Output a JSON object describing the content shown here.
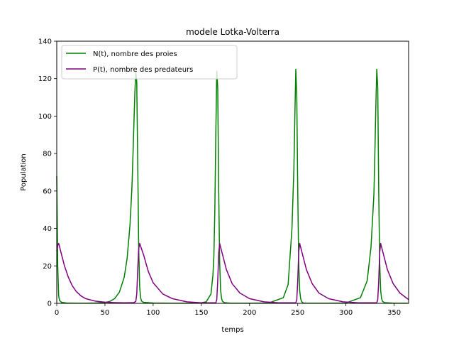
{
  "chart_data": {
    "type": "line",
    "title": "modele Lotka-Volterra",
    "xlabel": "temps",
    "ylabel": "Population",
    "xlim": [
      0,
      365
    ],
    "ylim": [
      0,
      140
    ],
    "xticks": [
      0,
      50,
      100,
      150,
      200,
      250,
      300,
      350
    ],
    "yticks": [
      0,
      20,
      40,
      60,
      80,
      100,
      120,
      140
    ],
    "grid": false,
    "legend": {
      "position": "top-left"
    },
    "series": [
      {
        "name": "N(t), nombre des proies",
        "color": "#008000",
        "x": [
          0,
          1,
          2,
          3,
          5,
          10,
          20,
          30,
          40,
          50,
          55,
          60,
          65,
          70,
          73,
          76,
          78,
          79,
          80,
          81,
          82,
          83,
          84,
          85,
          86,
          87,
          88,
          90,
          100,
          120,
          140,
          150,
          155,
          160,
          162,
          163,
          164,
          165,
          166,
          167,
          168,
          169,
          170,
          171,
          172,
          174,
          180,
          200,
          220,
          235,
          240,
          244,
          246,
          247,
          248,
          249,
          250,
          251,
          252,
          253,
          254,
          255,
          256,
          260,
          280,
          300,
          315,
          322,
          326,
          329,
          330,
          331,
          332,
          333,
          334,
          335,
          336,
          337,
          338,
          340,
          350,
          365
        ],
        "y": [
          68,
          20,
          4,
          1.5,
          0.5,
          0.2,
          0.1,
          0.1,
          0.2,
          0.5,
          1,
          2.5,
          6,
          14,
          24,
          42,
          62,
          78,
          95,
          112,
          124,
          118,
          75,
          30,
          9,
          3,
          1.2,
          0.5,
          0.2,
          0.1,
          0.1,
          0.3,
          0.8,
          5,
          15,
          25,
          50,
          90,
          124,
          115,
          60,
          22,
          7,
          2.5,
          1,
          0.4,
          0.1,
          0.1,
          0.2,
          3,
          10,
          40,
          72,
          100,
          125,
          110,
          60,
          22,
          7,
          2.5,
          1,
          0.4,
          0.2,
          0.1,
          0.1,
          0.2,
          3,
          12,
          30,
          58,
          80,
          105,
          125,
          115,
          60,
          22,
          7,
          2.5,
          1,
          0.4,
          0.1,
          0.1
        ]
      },
      {
        "name": "P(t), nombre des predateurs",
        "color": "#800080",
        "x": [
          0,
          1,
          2,
          4,
          8,
          12,
          16,
          20,
          25,
          30,
          40,
          50,
          60,
          70,
          80,
          82,
          83,
          84,
          85,
          86,
          90,
          95,
          100,
          110,
          120,
          135,
          150,
          165,
          166,
          167,
          168,
          169,
          172,
          176,
          182,
          190,
          200,
          215,
          230,
          248,
          249,
          250,
          251,
          252,
          255,
          259,
          265,
          272,
          282,
          297,
          313,
          332,
          333,
          334,
          335,
          336,
          339,
          343,
          349,
          356,
          365
        ],
        "y": [
          28,
          31,
          32,
          28,
          20,
          14,
          9.5,
          6.5,
          4,
          2.5,
          1.2,
          0.6,
          0.4,
          0.3,
          0.4,
          1,
          5,
          18,
          29,
          32,
          26,
          17,
          11,
          5,
          2.5,
          0.8,
          0.3,
          0.3,
          2,
          12,
          27,
          32,
          26,
          18,
          10.5,
          5.5,
          2.5,
          0.8,
          0.3,
          0.3,
          2,
          12,
          27,
          32,
          26,
          18,
          10.5,
          5.5,
          2.5,
          0.8,
          0.3,
          0.3,
          2,
          12,
          27,
          32,
          26,
          18,
          10.5,
          5.5,
          2
        ]
      }
    ]
  }
}
